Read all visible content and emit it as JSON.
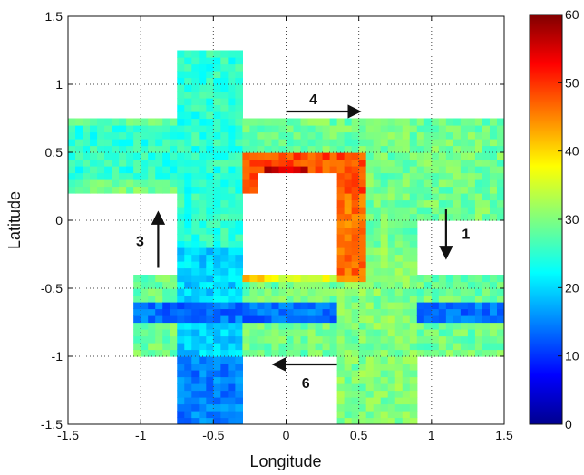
{
  "chart_data": {
    "type": "heatmap",
    "title": "",
    "xlabel": "Longitude",
    "ylabel": "Latitude",
    "xlim": [
      -1.5,
      1.5
    ],
    "ylim": [
      -1.5,
      1.5
    ],
    "xticks": [
      -1.5,
      -1,
      -0.5,
      0,
      0.5,
      1,
      1.5
    ],
    "yticks": [
      -1.5,
      -1,
      -0.5,
      0,
      0.5,
      1,
      1.5
    ],
    "xtick_labels": [
      "-1.5",
      "-1",
      "-0.5",
      "0",
      "0.5",
      "1",
      "1.5"
    ],
    "ytick_labels": [
      "-1.5",
      "-1",
      "-0.5",
      "0",
      "0.5",
      "1",
      "1.5"
    ],
    "grid": true,
    "colorbar": {
      "min": 0,
      "max": 60,
      "ticks": [
        0,
        10,
        20,
        30,
        40,
        50,
        60
      ],
      "tick_labels": [
        "0",
        "10",
        "20",
        "30",
        "40",
        "50",
        "60"
      ],
      "colormap": "jet"
    },
    "arrows": [
      {
        "label": "1",
        "from": [
          1.1,
          0.08
        ],
        "to": [
          1.1,
          -0.27
        ]
      },
      {
        "label": "3",
        "from": [
          -0.88,
          -0.35
        ],
        "to": [
          -0.88,
          0.05
        ]
      },
      {
        "label": "4",
        "from": [
          0.0,
          0.8
        ],
        "to": [
          0.5,
          0.8
        ]
      },
      {
        "label": "6",
        "from": [
          0.35,
          -1.06
        ],
        "to": [
          -0.08,
          -1.06
        ]
      }
    ]
  }
}
